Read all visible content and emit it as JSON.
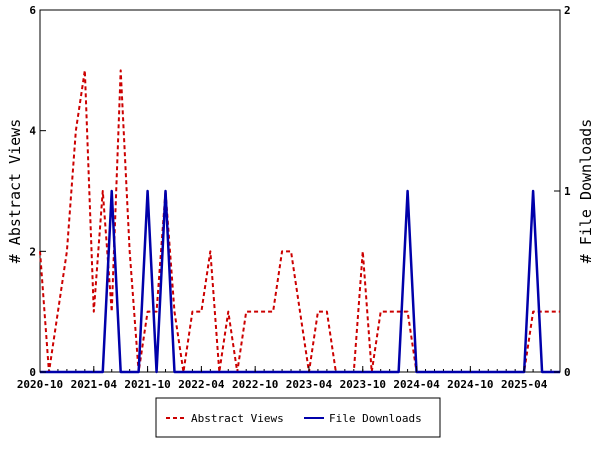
{
  "chart_data": {
    "type": "line",
    "title": "",
    "xlabel": "",
    "x": [
      "2020-10",
      "2020-11",
      "2020-12",
      "2021-01",
      "2021-02",
      "2021-03",
      "2021-04",
      "2021-05",
      "2021-06",
      "2021-07",
      "2021-08",
      "2021-09",
      "2021-10",
      "2021-11",
      "2021-12",
      "2022-01",
      "2022-02",
      "2022-03",
      "2022-04",
      "2022-05",
      "2022-06",
      "2022-07",
      "2022-08",
      "2022-09",
      "2022-10",
      "2022-11",
      "2022-12",
      "2023-01",
      "2023-02",
      "2023-03",
      "2023-04",
      "2023-05",
      "2023-06",
      "2023-07",
      "2023-08",
      "2023-09",
      "2023-10",
      "2023-11",
      "2023-12",
      "2024-01",
      "2024-02",
      "2024-03",
      "2024-04",
      "2024-05",
      "2024-06",
      "2024-07",
      "2024-08",
      "2024-09",
      "2024-10",
      "2024-11",
      "2024-12",
      "2025-01",
      "2025-02",
      "2025-03",
      "2025-04",
      "2025-05",
      "2025-06",
      "2025-07",
      "2025-08"
    ],
    "x_ticks": [
      "2020-10",
      "2021-04",
      "2021-10",
      "2022-04",
      "2022-10",
      "2023-04",
      "2023-10",
      "2024-04",
      "2024-10",
      "2025-04"
    ],
    "series": [
      {
        "name": "Abstract Views",
        "axis": "left",
        "color": "#cc0000",
        "style": "dashed",
        "values": [
          2,
          0,
          1,
          2,
          4,
          5,
          1,
          3,
          1,
          5,
          2,
          0,
          1,
          1,
          3,
          1,
          0,
          1,
          1,
          2,
          0,
          1,
          0,
          1,
          1,
          1,
          1,
          2,
          2,
          1,
          0,
          1,
          1,
          0,
          0,
          0,
          2,
          0,
          1,
          1,
          1,
          1,
          0,
          0,
          0,
          0,
          0,
          0,
          0,
          0,
          0,
          0,
          0,
          0,
          0,
          1,
          1,
          1,
          1
        ]
      },
      {
        "name": "File Downloads",
        "axis": "right",
        "color": "#0000aa",
        "style": "solid",
        "values": [
          0,
          0,
          0,
          0,
          0,
          0,
          0,
          0,
          1,
          0,
          0,
          0,
          1,
          0,
          1,
          0,
          0,
          0,
          0,
          0,
          0,
          0,
          0,
          0,
          0,
          0,
          0,
          0,
          0,
          0,
          0,
          0,
          0,
          0,
          0,
          0,
          0,
          0,
          0,
          0,
          0,
          1,
          0,
          0,
          0,
          0,
          0,
          0,
          0,
          0,
          0,
          0,
          0,
          0,
          0,
          1,
          0,
          0,
          0
        ]
      }
    ],
    "y_left": {
      "label": "# Abstract Views",
      "ylim": [
        0,
        6
      ],
      "ticks": [
        "0",
        "2",
        "4",
        "6"
      ]
    },
    "y_right": {
      "label": "# File Downloads",
      "ylim": [
        0,
        2
      ],
      "ticks": [
        "0",
        "1",
        "2"
      ]
    },
    "grid": false,
    "legend_placement": "bottom-center"
  }
}
